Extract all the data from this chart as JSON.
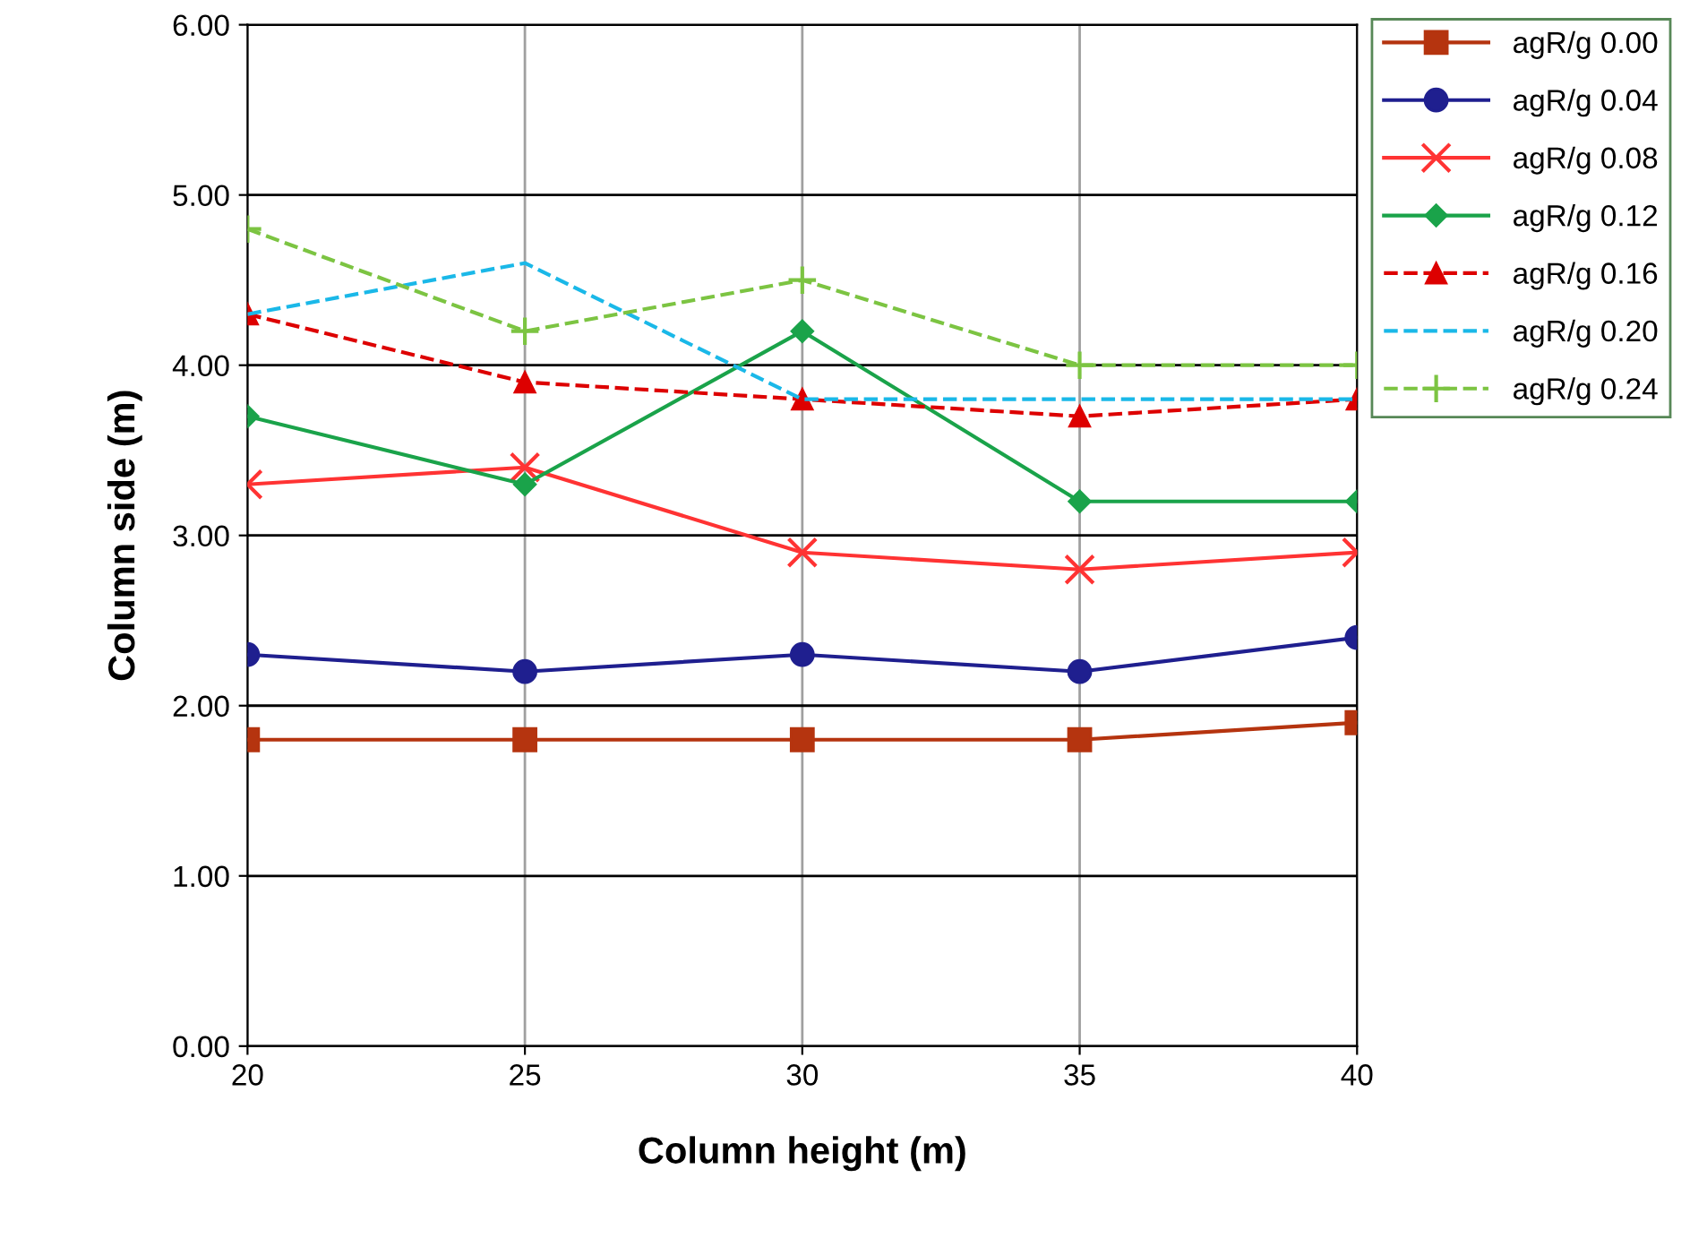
{
  "chart_data": {
    "type": "line",
    "xlabel": "Column height (m)",
    "ylabel": "Column side (m)",
    "x": [
      20,
      25,
      30,
      35,
      40
    ],
    "xlim": [
      20,
      40
    ],
    "xticks": [
      20,
      25,
      30,
      35,
      40
    ],
    "ylim": [
      0,
      6
    ],
    "yticks": [
      {
        "value": 0,
        "label": "0.00"
      },
      {
        "value": 1,
        "label": "1.00"
      },
      {
        "value": 2,
        "label": "2.00"
      },
      {
        "value": 3,
        "label": "3.00"
      },
      {
        "value": 4,
        "label": "4.00"
      },
      {
        "value": 5,
        "label": "5.00"
      },
      {
        "value": 6,
        "label": "6.00"
      }
    ],
    "grid": true,
    "legend": "top right",
    "series": [
      {
        "name": "agR/g 0.00",
        "color": "#b5340f",
        "marker": "square",
        "line_style": "solid",
        "values": [
          1.8,
          1.8,
          1.8,
          1.8,
          1.9
        ]
      },
      {
        "name": "agR/g 0.04",
        "color": "#1f1f8f",
        "marker": "circle",
        "line_style": "solid",
        "values": [
          2.3,
          2.2,
          2.3,
          2.2,
          2.4
        ]
      },
      {
        "name": "agR/g 0.08",
        "color": "#ff3333",
        "marker": "x",
        "line_style": "solid",
        "values": [
          3.3,
          3.4,
          2.9,
          2.8,
          2.9
        ]
      },
      {
        "name": "agR/g 0.12",
        "color": "#1aa34a",
        "marker": "diamond",
        "line_style": "solid",
        "values": [
          3.7,
          3.3,
          4.2,
          3.2,
          3.2
        ]
      },
      {
        "name": "agR/g 0.16",
        "color": "#dd0000",
        "marker": "triangle",
        "line_style": "dashed",
        "values": [
          4.3,
          3.9,
          3.8,
          3.7,
          3.8
        ]
      },
      {
        "name": "agR/g 0.20",
        "color": "#1ab8e8",
        "marker": "none",
        "line_style": "dashed",
        "values": [
          4.3,
          4.6,
          3.8,
          3.8,
          3.8
        ]
      },
      {
        "name": "agR/g 0.24",
        "color": "#7cc442",
        "marker": "cross",
        "line_style": "dashed",
        "values": [
          4.8,
          4.2,
          4.5,
          4.0,
          4.0
        ]
      }
    ]
  }
}
